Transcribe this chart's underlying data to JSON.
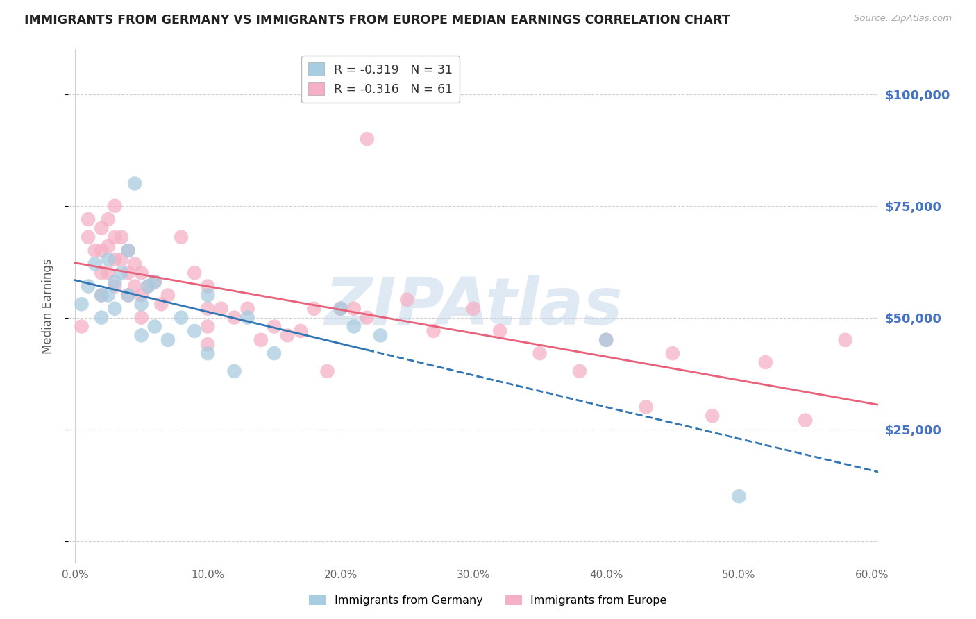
{
  "title": "IMMIGRANTS FROM GERMANY VS IMMIGRANTS FROM EUROPE MEDIAN EARNINGS CORRELATION CHART",
  "source": "Source: ZipAtlas.com",
  "ylabel": "Median Earnings",
  "xlim": [
    -0.005,
    0.605
  ],
  "ylim": [
    -5000,
    110000
  ],
  "yticks": [
    0,
    25000,
    50000,
    75000,
    100000
  ],
  "xticks": [
    0.0,
    0.1,
    0.2,
    0.3,
    0.4,
    0.5,
    0.6
  ],
  "xtick_labels": [
    "0.0%",
    "10.0%",
    "20.0%",
    "30.0%",
    "40.0%",
    "50.0%",
    "60.0%"
  ],
  "ytick_labels_right": [
    "",
    "$25,000",
    "$50,000",
    "$75,000",
    "$100,000"
  ],
  "germany_color": "#a8cce0",
  "europe_color": "#f5b0c5",
  "trendline_germany_color": "#3275b5",
  "trendline_europe_color": "#e8607a",
  "background_color": "#ffffff",
  "watermark": "ZIPAtlas",
  "watermark_color": "#c5d8ea",
  "grid_color": "#d0d0d0",
  "germany_R": -0.319,
  "germany_N": 31,
  "europe_R": -0.316,
  "europe_N": 61,
  "germany_x": [
    0.005,
    0.01,
    0.015,
    0.02,
    0.02,
    0.025,
    0.025,
    0.03,
    0.03,
    0.035,
    0.04,
    0.04,
    0.05,
    0.05,
    0.055,
    0.06,
    0.06,
    0.07,
    0.08,
    0.09,
    0.1,
    0.1,
    0.12,
    0.13,
    0.15,
    0.2,
    0.21,
    0.23,
    0.4,
    0.5,
    0.045
  ],
  "germany_y": [
    53000,
    57000,
    62000,
    55000,
    50000,
    63000,
    55000,
    58000,
    52000,
    60000,
    65000,
    55000,
    53000,
    46000,
    57000,
    58000,
    48000,
    45000,
    50000,
    47000,
    55000,
    42000,
    38000,
    50000,
    42000,
    52000,
    48000,
    46000,
    45000,
    10000,
    80000
  ],
  "europe_x": [
    0.005,
    0.01,
    0.01,
    0.015,
    0.02,
    0.02,
    0.02,
    0.02,
    0.025,
    0.025,
    0.025,
    0.03,
    0.03,
    0.03,
    0.03,
    0.035,
    0.035,
    0.04,
    0.04,
    0.04,
    0.045,
    0.045,
    0.05,
    0.05,
    0.05,
    0.055,
    0.06,
    0.065,
    0.07,
    0.08,
    0.09,
    0.1,
    0.1,
    0.1,
    0.11,
    0.12,
    0.13,
    0.14,
    0.15,
    0.16,
    0.17,
    0.18,
    0.19,
    0.2,
    0.21,
    0.22,
    0.25,
    0.27,
    0.3,
    0.32,
    0.35,
    0.38,
    0.4,
    0.43,
    0.45,
    0.48,
    0.52,
    0.55,
    0.58,
    0.22,
    0.1
  ],
  "europe_y": [
    48000,
    72000,
    68000,
    65000,
    70000,
    65000,
    60000,
    55000,
    72000,
    66000,
    60000,
    75000,
    68000,
    63000,
    57000,
    68000,
    63000,
    65000,
    60000,
    55000,
    62000,
    57000,
    60000,
    55000,
    50000,
    57000,
    58000,
    53000,
    55000,
    68000,
    60000,
    57000,
    52000,
    48000,
    52000,
    50000,
    52000,
    45000,
    48000,
    46000,
    47000,
    52000,
    38000,
    52000,
    52000,
    50000,
    54000,
    47000,
    52000,
    47000,
    42000,
    38000,
    45000,
    30000,
    42000,
    28000,
    40000,
    27000,
    45000,
    90000,
    44000
  ]
}
